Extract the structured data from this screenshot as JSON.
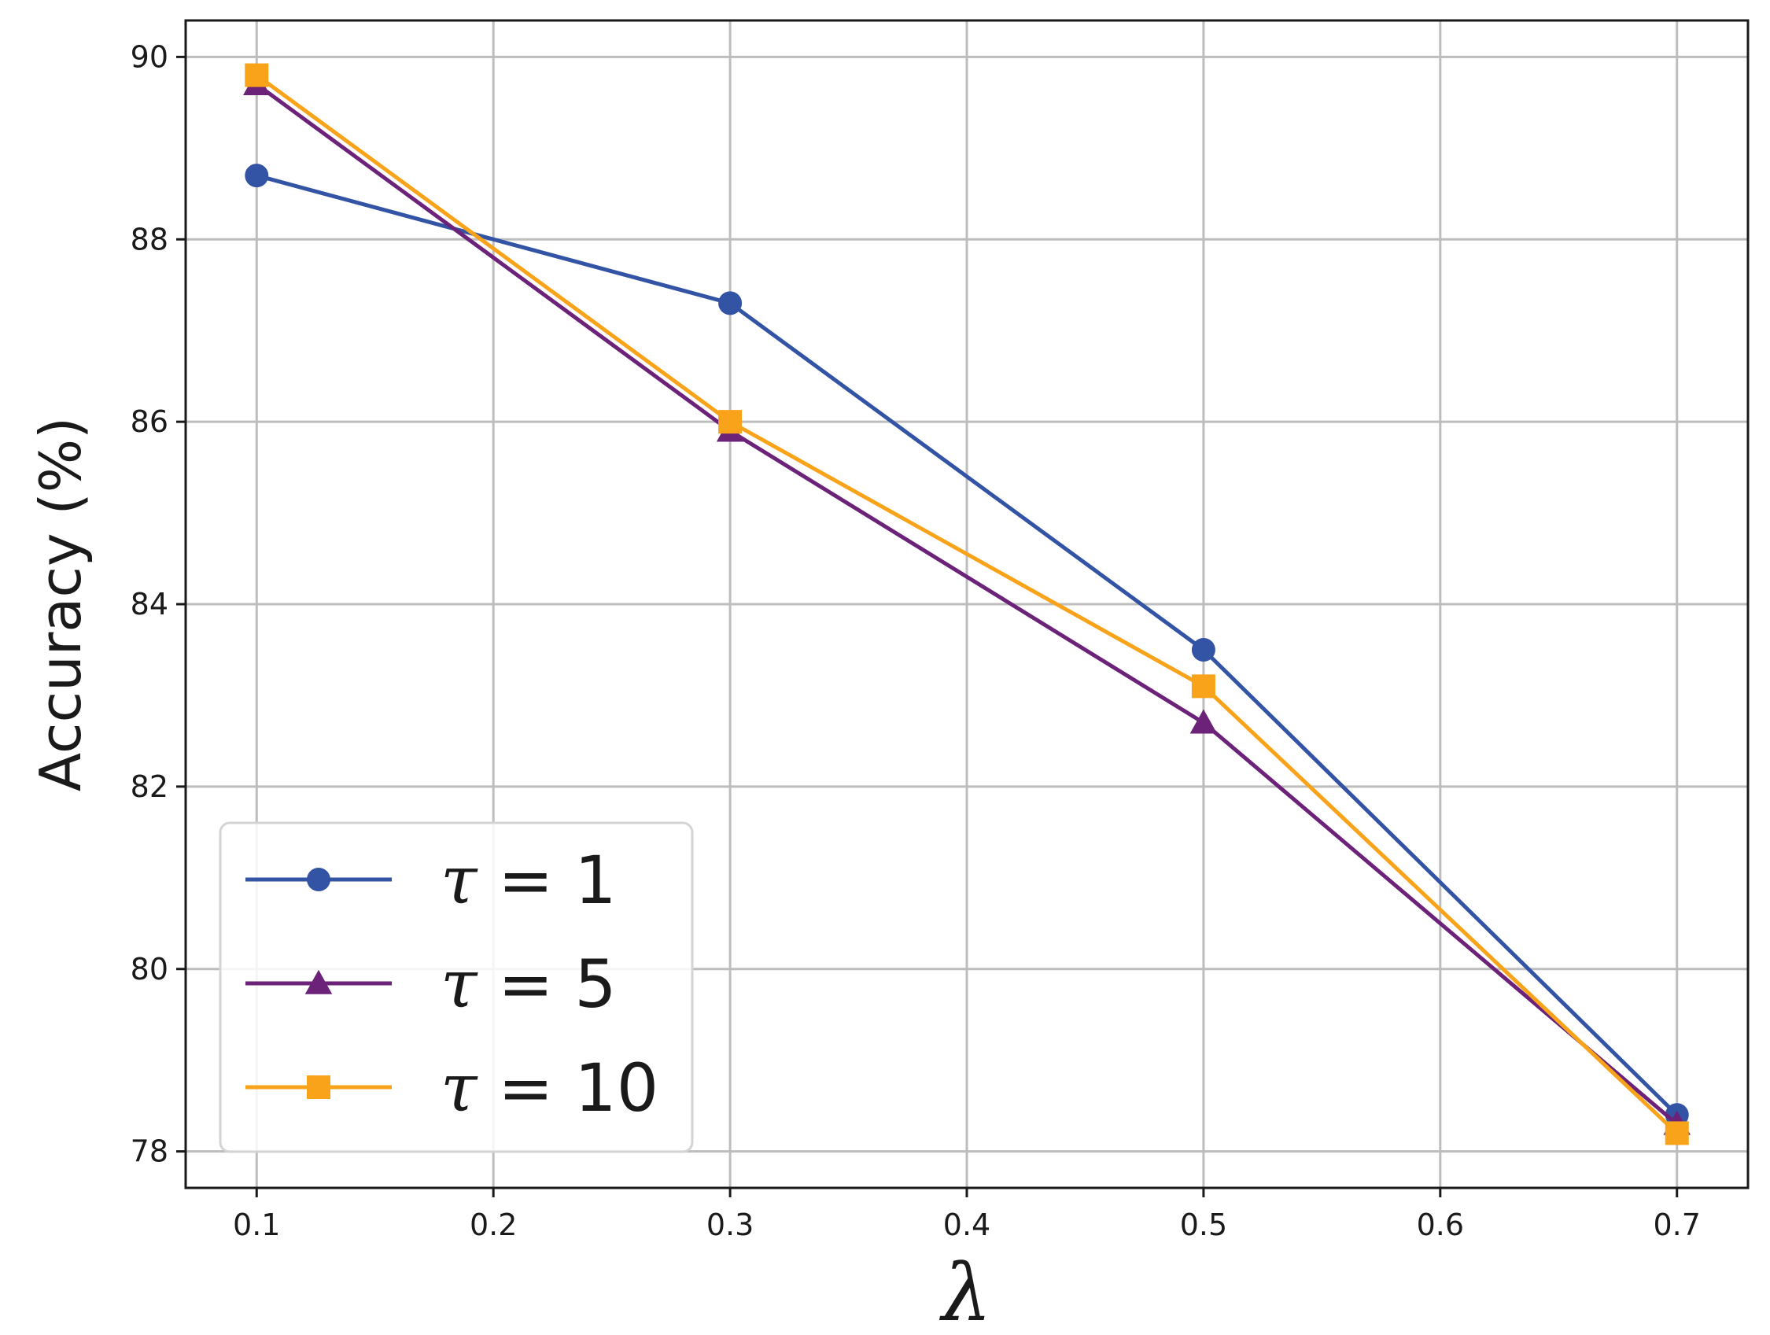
{
  "chart_data": {
    "type": "line",
    "xlabel": "λ",
    "ylabel": "Accuracy (%)",
    "xlim": [
      0.07,
      0.73
    ],
    "ylim": [
      77.6,
      90.4
    ],
    "xticks": [
      0.1,
      0.2,
      0.3,
      0.4,
      0.5,
      0.6,
      0.7
    ],
    "xtick_labels": [
      "0.1",
      "0.2",
      "0.3",
      "0.4",
      "0.5",
      "0.6",
      "0.7"
    ],
    "yticks": [
      78,
      80,
      82,
      84,
      86,
      88,
      90
    ],
    "ytick_labels": [
      "78",
      "80",
      "82",
      "84",
      "86",
      "88",
      "90"
    ],
    "grid": true,
    "legend_position": "bottom-left",
    "x": [
      0.1,
      0.3,
      0.5,
      0.7
    ],
    "series": [
      {
        "name": "τ = 1",
        "tau_symbol": "τ",
        "tau_value": "1",
        "color": "#3353a4",
        "marker": "circle",
        "values": [
          88.7,
          87.3,
          83.5,
          78.4
        ]
      },
      {
        "name": "τ = 5",
        "tau_symbol": "τ",
        "tau_value": "5",
        "color": "#6b2278",
        "marker": "triangle",
        "values": [
          89.7,
          85.9,
          82.7,
          78.3
        ]
      },
      {
        "name": "τ = 10",
        "tau_symbol": "τ",
        "tau_value": "10",
        "color": "#f9a31b",
        "marker": "square",
        "values": [
          89.8,
          86.0,
          83.1,
          78.2
        ]
      }
    ]
  }
}
